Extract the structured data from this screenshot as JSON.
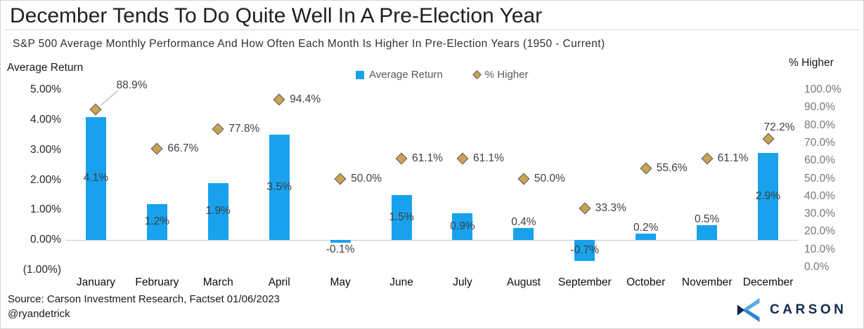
{
  "header": {
    "title": "December Tends To Do Quite Well In A Pre-Election Year",
    "subtitle": "S&P 500 Average Monthly Performance And How Often Each Month Is Higher In Pre-Election Years (1950 - Current)"
  },
  "legend": {
    "items": [
      {
        "label": "Average Return",
        "marker": "square-icon"
      },
      {
        "label": "% Higher",
        "marker": "diamond-icon"
      }
    ]
  },
  "axes": {
    "left": {
      "title": "Average Return",
      "tick_labels": [
        "5.00%",
        "4.00%",
        "3.00%",
        "2.00%",
        "1.00%",
        "0.00%",
        "(1.00%)"
      ],
      "tick_values": [
        5,
        4,
        3,
        2,
        1,
        0,
        -1
      ]
    },
    "right": {
      "title": "% Higher",
      "tick_labels": [
        "100.0%",
        "90.0%",
        "80.0%",
        "70.0%",
        "60.0%",
        "50.0%",
        "40.0%",
        "30.0%",
        "20.0%",
        "10.0%",
        "0.0%"
      ],
      "tick_values": [
        100,
        90,
        80,
        70,
        60,
        50,
        40,
        30,
        20,
        10,
        0
      ]
    }
  },
  "chart_data": {
    "type": "bar",
    "categories": [
      "January",
      "February",
      "March",
      "April",
      "May",
      "June",
      "July",
      "August",
      "September",
      "October",
      "November",
      "December"
    ],
    "series": [
      {
        "name": "Average Return",
        "type": "bar",
        "axis": "left",
        "values": [
          4.1,
          1.2,
          1.9,
          3.5,
          -0.1,
          1.5,
          0.9,
          0.4,
          -0.7,
          0.2,
          0.5,
          2.9
        ],
        "labels": [
          "4.1%",
          "1.2%",
          "1.9%",
          "3.5%",
          "-0.1%",
          "1.5%",
          "0.9%",
          "0.4%",
          "-0.7%",
          "0.2%",
          "0.5%",
          "2.9%"
        ],
        "color": "#18A2EE"
      },
      {
        "name": "% Higher",
        "type": "scatter",
        "marker": "diamond",
        "axis": "right",
        "values": [
          88.9,
          66.7,
          77.8,
          94.4,
          50.0,
          61.1,
          61.1,
          50.0,
          33.3,
          55.6,
          61.1,
          72.2
        ],
        "labels": [
          "88.9%",
          "66.7%",
          "77.8%",
          "94.4%",
          "50.0%",
          "61.1%",
          "61.1%",
          "50.0%",
          "33.3%",
          "55.6%",
          "61.1%",
          "72.2%"
        ],
        "color": "#C8A355"
      }
    ],
    "title": "S&P 500 Average Monthly Performance And How Often Each Month Is Higher In Pre-Election Years (1950 - Current)",
    "xlabel": "",
    "ylabel_left": "Average Return",
    "ylabel_right": "% Higher",
    "left_ylim": [
      -1,
      5
    ],
    "right_ylim": [
      0,
      100
    ],
    "grid": false,
    "legend_position": "top-center"
  },
  "footer": {
    "source": "Source: Carson Investment Research, Factset 01/06/2023",
    "handle": "@ryandetrick",
    "brand": "CARSON"
  },
  "colors": {
    "bar_blue": "#18A2EE",
    "diamond_gold": "#C8A355",
    "diamond_border": "#5a5a5a",
    "navy": "#13294B",
    "logo_light_blue": "#58A9E4",
    "logo_mid_blue": "#2E84D8",
    "zero_line": "#c8c8c8"
  }
}
